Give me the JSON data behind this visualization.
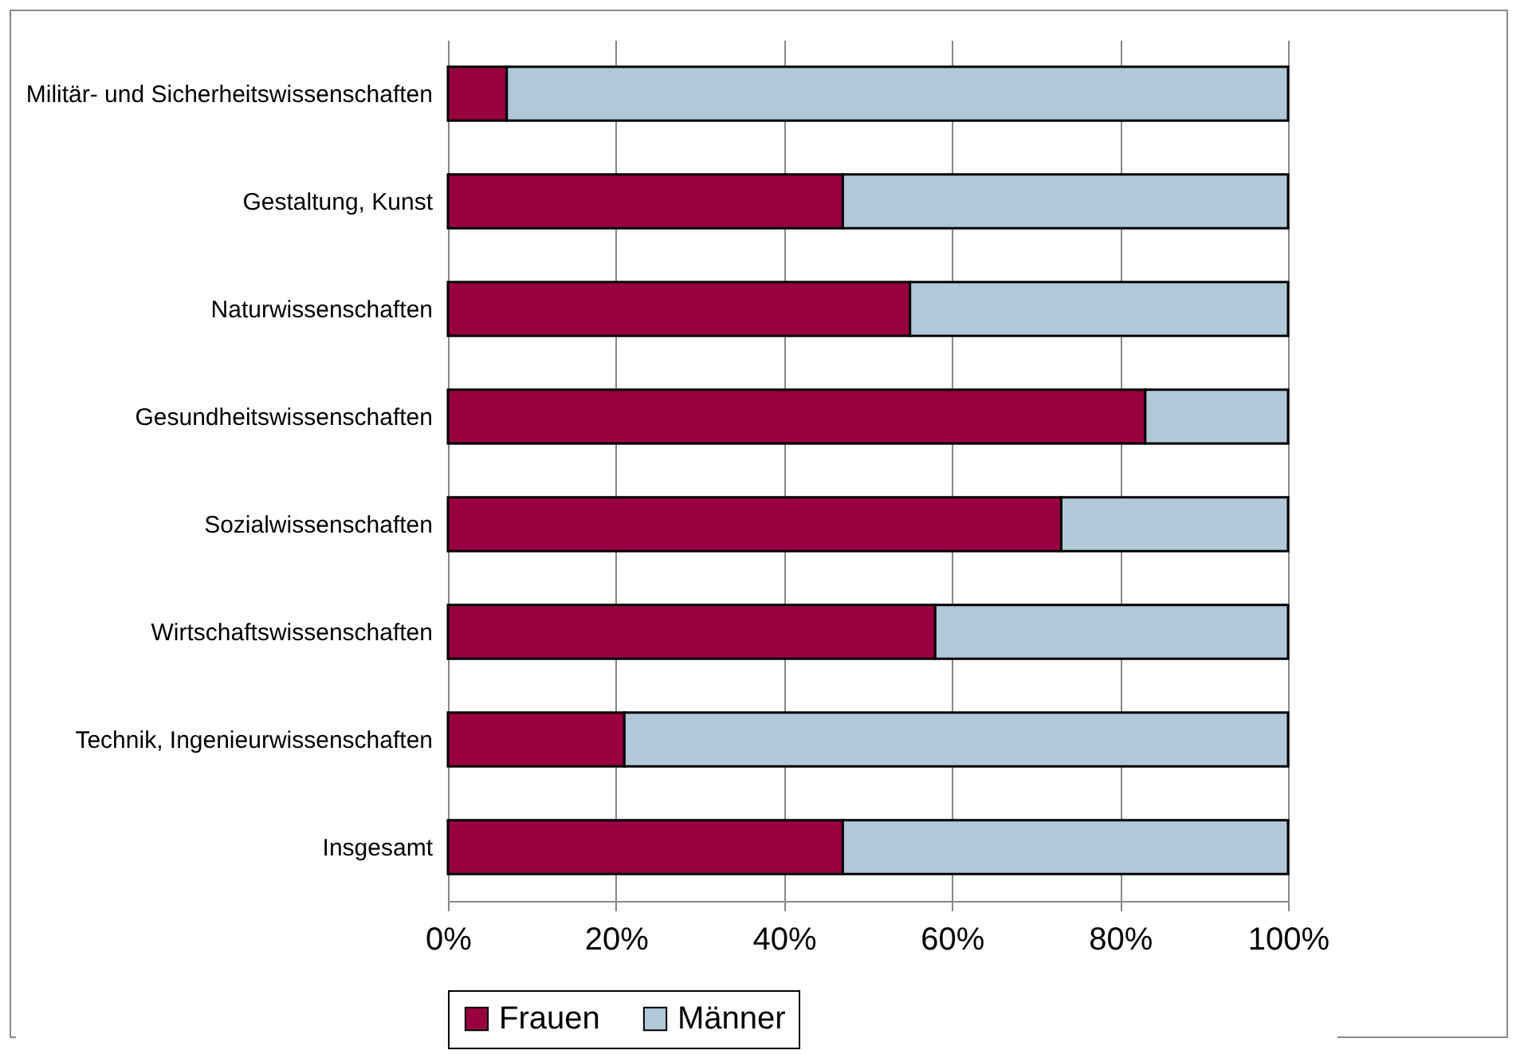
{
  "chart_data": {
    "type": "bar",
    "orientation": "horizontal",
    "stacked": true,
    "categories": [
      "Militär- und Sicherheitswissenschaften",
      "Gestaltung, Kunst",
      "Naturwissenschaften",
      "Gesundheitswissenschaften",
      "Sozialwissenschaften",
      "Wirtschaftswissenschaften",
      "Technik, Ingenieurwissenschaften",
      "Insgesamt"
    ],
    "series": [
      {
        "name": "Frauen",
        "color": "#990040",
        "values": [
          7,
          47,
          55,
          83,
          73,
          58,
          21,
          47
        ]
      },
      {
        "name": "Männer",
        "color": "#b0c8d8",
        "values": [
          93,
          53,
          45,
          17,
          27,
          42,
          79,
          53
        ]
      }
    ],
    "xlim": [
      0,
      100
    ],
    "xticks": [
      {
        "value": 0,
        "label": "0%"
      },
      {
        "value": 20,
        "label": "20%"
      },
      {
        "value": 40,
        "label": "40%"
      },
      {
        "value": 60,
        "label": "60%"
      },
      {
        "value": 80,
        "label": "80%"
      },
      {
        "value": 100,
        "label": "100%"
      }
    ],
    "grid": "x",
    "legend": "bottom"
  }
}
